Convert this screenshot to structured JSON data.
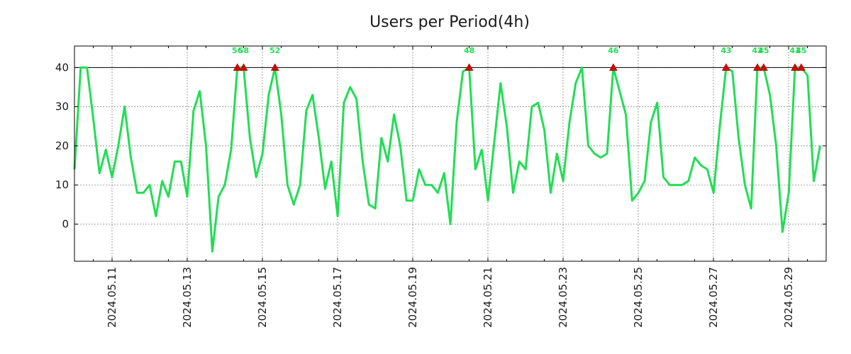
{
  "chart_data": {
    "type": "line",
    "title": "Users per Period(4h)",
    "xlabel": "",
    "ylabel": "",
    "x_unit": "day index (0 = 2024.05.10 00:00), step 4h",
    "x_start": 0.0,
    "x_step": 0.1667,
    "xlim": [
      0.0,
      20.0
    ],
    "ylim": [
      -9.5,
      45.5
    ],
    "yticks": [
      0,
      10,
      20,
      30,
      40
    ],
    "xticks": [
      {
        "x": 1,
        "label": "2024.05.11"
      },
      {
        "x": 3,
        "label": "2024.05.13"
      },
      {
        "x": 5,
        "label": "2024.05.15"
      },
      {
        "x": 7,
        "label": "2024.05.17"
      },
      {
        "x": 9,
        "label": "2024.05.19"
      },
      {
        "x": 11,
        "label": "2024.05.21"
      },
      {
        "x": 13,
        "label": "2024.05.23"
      },
      {
        "x": 15,
        "label": "2024.05.25"
      },
      {
        "x": 17,
        "label": "2024.05.27"
      },
      {
        "x": 19,
        "label": "2024.05.29"
      }
    ],
    "minor_xticks": [
      0.5,
      1.5,
      2.5,
      3.5,
      4.5,
      5.5,
      6.5,
      7.5,
      8.5,
      9.5,
      10.5,
      11.5,
      12.5,
      13.5,
      14.5,
      15.5,
      16.5,
      17.5,
      18.5,
      19.5
    ],
    "grid": true,
    "threshold": 40,
    "series": [
      {
        "name": "Users",
        "color": "#22dd55",
        "values": [
          14,
          40,
          40,
          27,
          13,
          19,
          12,
          20,
          30,
          17,
          8,
          8,
          10,
          2,
          11,
          7,
          16,
          16,
          7,
          29,
          34,
          20,
          -7,
          7,
          10,
          19,
          40,
          40,
          22,
          12,
          18,
          33,
          40,
          28,
          10,
          5,
          10,
          29,
          33,
          22,
          9,
          16,
          2,
          31,
          35,
          32,
          16,
          5,
          4,
          22,
          16,
          28,
          20,
          6,
          6,
          14,
          10,
          10,
          8,
          13,
          0,
          26,
          39,
          40,
          14,
          19,
          6,
          21,
          36,
          25,
          8,
          16,
          14,
          30,
          31,
          24,
          8,
          18,
          11,
          26,
          36,
          40,
          20,
          18,
          17,
          18,
          40,
          34,
          28,
          6,
          8,
          11,
          26,
          31,
          12,
          10,
          10,
          10,
          11,
          17,
          15,
          14,
          8,
          25,
          40,
          39,
          22,
          10,
          4,
          40,
          40,
          33,
          20,
          -2,
          8,
          40,
          40,
          38,
          11,
          20
        ]
      }
    ],
    "peaks": [
      {
        "index": 26,
        "label": "56"
      },
      {
        "index": 27,
        "label": "58"
      },
      {
        "index": 32,
        "label": "52"
      },
      {
        "index": 63,
        "label": "48"
      },
      {
        "index": 86,
        "label": "46"
      },
      {
        "index": 104,
        "label": "43"
      },
      {
        "index": 109,
        "label": "43"
      },
      {
        "index": 110,
        "label": "45"
      },
      {
        "index": 115,
        "label": "41"
      },
      {
        "index": 116,
        "label": "45"
      }
    ]
  }
}
